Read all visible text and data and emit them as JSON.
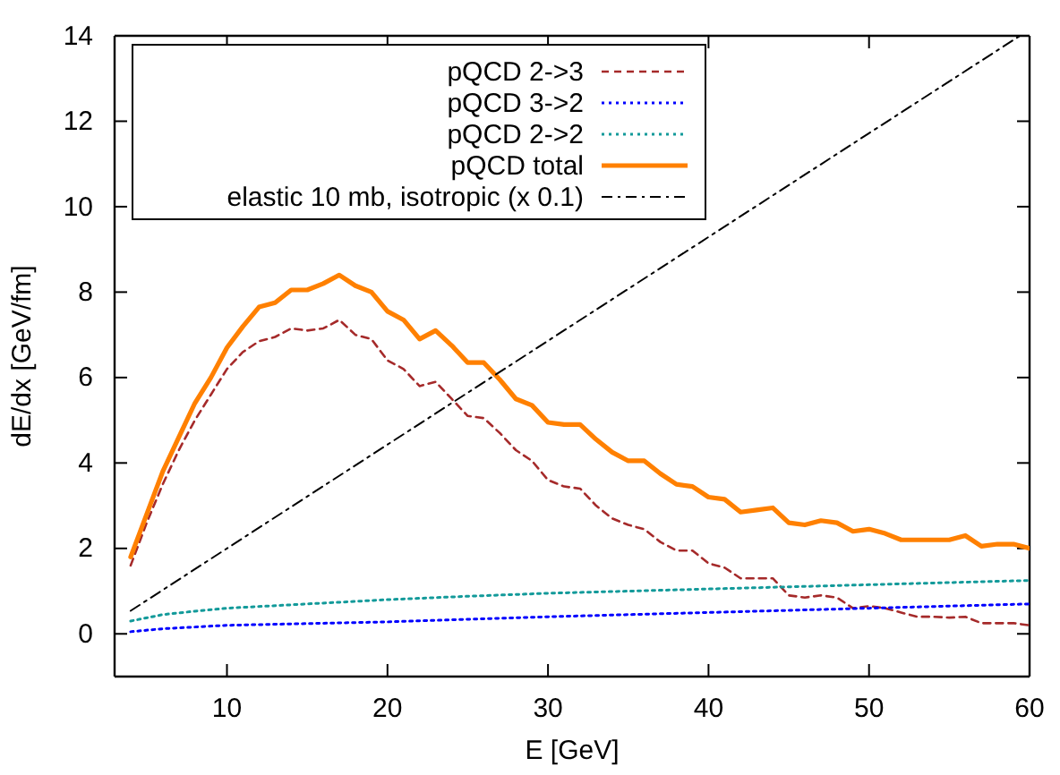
{
  "chart_data": {
    "type": "line",
    "xlabel": "E  [GeV]",
    "ylabel": "dE/dx  [GeV/fm]",
    "xlim": [
      3,
      60
    ],
    "ylim": [
      -1,
      14
    ],
    "xticks": [
      10,
      20,
      30,
      40,
      50,
      60
    ],
    "yticks": [
      0,
      2,
      4,
      6,
      8,
      10,
      12,
      14
    ],
    "legend": "top left",
    "grid": false,
    "series": [
      {
        "name": "pQCD 2->3",
        "color": "#a52a2a",
        "line_style": "dashed",
        "x": [
          4,
          5,
          6,
          7,
          8,
          9,
          10,
          11,
          12,
          13,
          14,
          15,
          16,
          17,
          18,
          19,
          20,
          21,
          22,
          23,
          24,
          25,
          26,
          27,
          28,
          29,
          30,
          31,
          32,
          33,
          34,
          35,
          36,
          37,
          38,
          39,
          40,
          41,
          42,
          43,
          44,
          45,
          46,
          47,
          48,
          49,
          50,
          51,
          52,
          53,
          54,
          55,
          56,
          57,
          58,
          59,
          60
        ],
        "values": [
          1.6,
          2.6,
          3.5,
          4.3,
          5.0,
          5.6,
          6.2,
          6.6,
          6.85,
          6.95,
          7.15,
          7.1,
          7.15,
          7.35,
          7.0,
          6.9,
          6.4,
          6.2,
          5.8,
          5.9,
          5.5,
          5.1,
          5.05,
          4.7,
          4.3,
          4.05,
          3.6,
          3.45,
          3.4,
          3.0,
          2.7,
          2.55,
          2.45,
          2.15,
          1.95,
          1.95,
          1.65,
          1.55,
          1.3,
          1.3,
          1.3,
          0.9,
          0.85,
          0.9,
          0.85,
          0.6,
          0.65,
          0.6,
          0.5,
          0.4,
          0.4,
          0.38,
          0.4,
          0.25,
          0.25,
          0.25,
          0.2
        ]
      },
      {
        "name": "pQCD 3->2",
        "color": "#0000ff",
        "line_style": "dotted",
        "x": [
          4,
          6,
          10,
          15,
          20,
          25,
          30,
          35,
          40,
          45,
          50,
          55,
          60
        ],
        "values": [
          0.05,
          0.12,
          0.2,
          0.24,
          0.28,
          0.34,
          0.4,
          0.45,
          0.5,
          0.55,
          0.6,
          0.65,
          0.7
        ]
      },
      {
        "name": "pQCD 2->2",
        "color": "#139a9a",
        "line_style": "dotted",
        "x": [
          4,
          6,
          8,
          10,
          15,
          20,
          25,
          30,
          35,
          40,
          45,
          50,
          55,
          60
        ],
        "values": [
          0.3,
          0.45,
          0.53,
          0.6,
          0.7,
          0.8,
          0.88,
          0.95,
          1.0,
          1.05,
          1.1,
          1.15,
          1.2,
          1.25
        ]
      },
      {
        "name": "pQCD total",
        "color": "#ff8000",
        "line_style": "solid",
        "x": [
          4,
          5,
          6,
          7,
          8,
          9,
          10,
          11,
          12,
          13,
          14,
          15,
          16,
          17,
          18,
          19,
          20,
          21,
          22,
          23,
          24,
          25,
          26,
          27,
          28,
          29,
          30,
          31,
          32,
          33,
          34,
          35,
          36,
          37,
          38,
          39,
          40,
          41,
          42,
          43,
          44,
          45,
          46,
          47,
          48,
          49,
          50,
          51,
          52,
          53,
          54,
          55,
          56,
          57,
          58,
          59,
          60
        ],
        "values": [
          1.8,
          2.8,
          3.8,
          4.6,
          5.4,
          6.0,
          6.7,
          7.2,
          7.65,
          7.75,
          8.05,
          8.05,
          8.2,
          8.4,
          8.15,
          8.0,
          7.55,
          7.35,
          6.9,
          7.1,
          6.75,
          6.35,
          6.35,
          5.95,
          5.5,
          5.35,
          4.95,
          4.9,
          4.9,
          4.55,
          4.25,
          4.05,
          4.05,
          3.75,
          3.5,
          3.45,
          3.2,
          3.15,
          2.85,
          2.9,
          2.95,
          2.6,
          2.55,
          2.65,
          2.6,
          2.4,
          2.45,
          2.35,
          2.2,
          2.2,
          2.2,
          2.2,
          2.3,
          2.05,
          2.1,
          2.1,
          2.0
        ]
      },
      {
        "name": "elastic 10 mb, isotropic  (x 0.1)",
        "color": "#000000",
        "line_style": "dashdot",
        "x": [
          4,
          10,
          20,
          30,
          40,
          50,
          59.4
        ],
        "values": [
          0.54,
          2.0,
          4.43,
          6.86,
          9.29,
          11.72,
          14.0
        ]
      }
    ]
  }
}
